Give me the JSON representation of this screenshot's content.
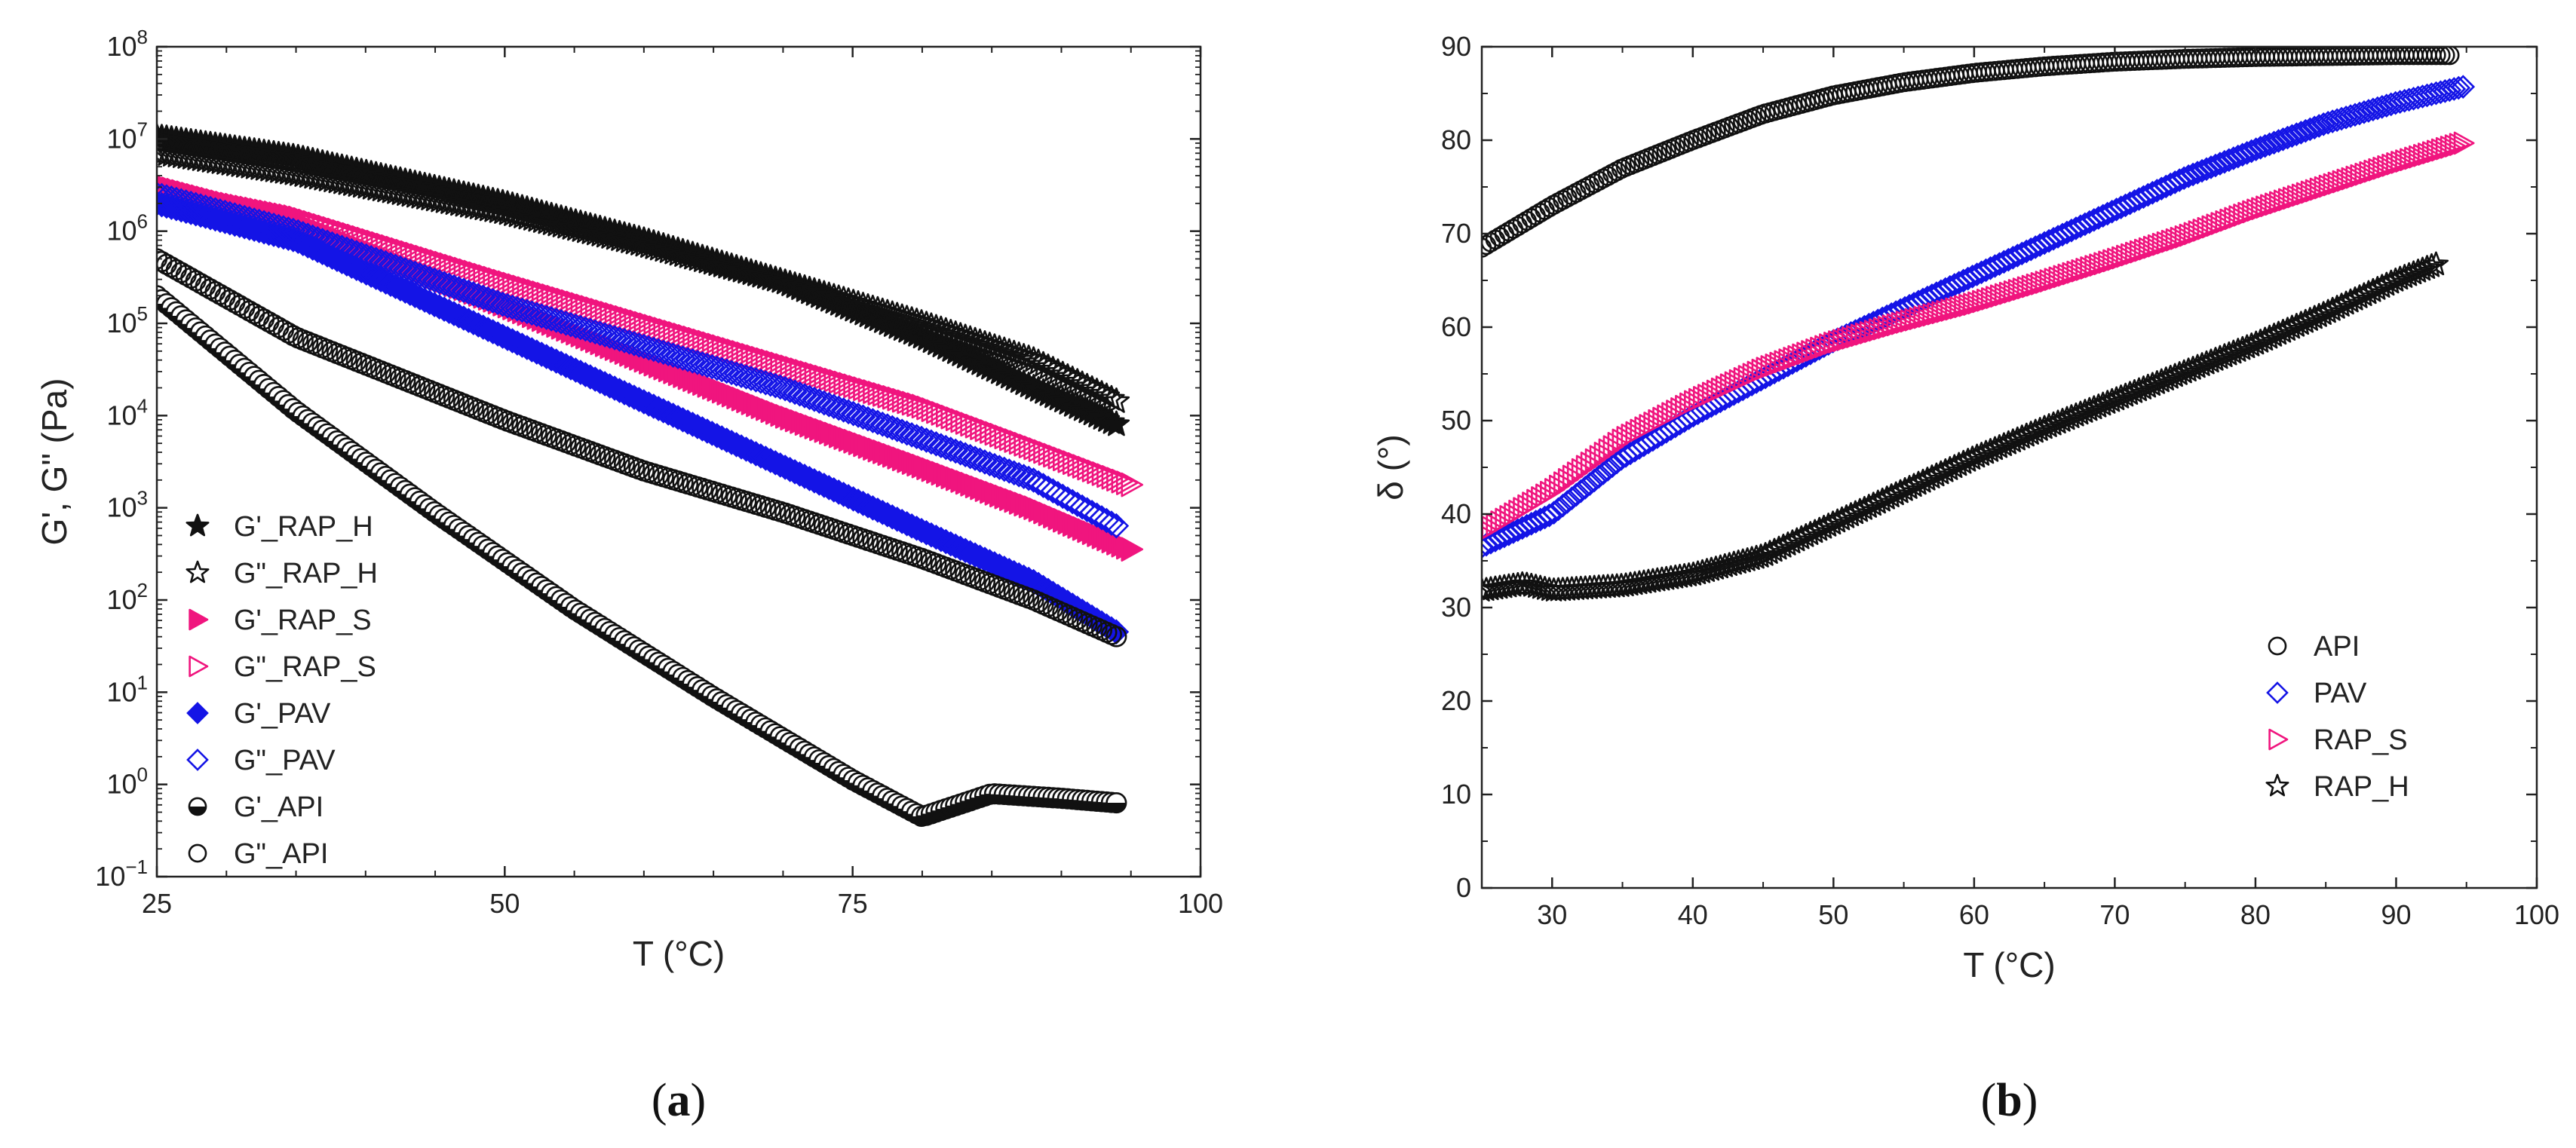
{
  "chart_data": [
    {
      "type": "scatter",
      "panel": "a",
      "caption": "(a)",
      "xlabel": "T (°C)",
      "ylabel": "G', G\" (Pa)",
      "xlim": [
        25,
        100
      ],
      "ylim_log10": [
        -1,
        8
      ],
      "yscale": "log",
      "xticks": [
        25,
        50,
        75,
        100
      ],
      "xtick_labels": [
        "25",
        "50",
        "75",
        "100"
      ],
      "ytick_labels": [
        {
          "base": "10",
          "exp": "−1"
        },
        {
          "base": "10",
          "exp": "0"
        },
        {
          "base": "10",
          "exp": "1"
        },
        {
          "base": "10",
          "exp": "2"
        },
        {
          "base": "10",
          "exp": "3"
        },
        {
          "base": "10",
          "exp": "4"
        },
        {
          "base": "10",
          "exp": "5"
        },
        {
          "base": "10",
          "exp": "6"
        },
        {
          "base": "10",
          "exp": "7"
        },
        {
          "base": "10",
          "exp": "8"
        }
      ],
      "legend_position": "lower-left",
      "series": [
        {
          "name": "G'_RAP_H",
          "color": "#111111",
          "marker": "star",
          "filled": true,
          "x": [
            25,
            35,
            50,
            60,
            70,
            80,
            88,
            94
          ],
          "log10_y": [
            7.02,
            6.8,
            6.3,
            5.9,
            5.45,
            4.85,
            4.3,
            3.9
          ]
        },
        {
          "name": "G\"_RAP_H",
          "color": "#111111",
          "marker": "star",
          "filled": false,
          "x": [
            25,
            35,
            50,
            60,
            70,
            80,
            88,
            94
          ],
          "log10_y": [
            6.85,
            6.62,
            6.2,
            5.85,
            5.45,
            5.0,
            4.6,
            4.15
          ]
        },
        {
          "name": "G'_RAP_S",
          "color": "#f0157e",
          "marker": "triangle-right",
          "filled": true,
          "x": [
            25,
            35,
            50,
            60,
            70,
            80,
            88,
            95
          ],
          "log10_y": [
            6.5,
            6.1,
            5.2,
            4.6,
            4.0,
            3.45,
            3.0,
            2.55
          ]
        },
        {
          "name": "G\"_RAP_S",
          "color": "#f0157e",
          "marker": "triangle-right",
          "filled": false,
          "x": [
            25,
            35,
            50,
            60,
            70,
            80,
            88,
            95
          ],
          "log10_y": [
            6.45,
            6.15,
            5.45,
            5.0,
            4.55,
            4.1,
            3.65,
            3.25
          ]
        },
        {
          "name": "G'_PAV",
          "color": "#1414e6",
          "marker": "diamond",
          "filled": true,
          "x": [
            25,
            35,
            50,
            60,
            70,
            80,
            88,
            94
          ],
          "log10_y": [
            6.3,
            5.9,
            4.85,
            4.15,
            3.45,
            2.75,
            2.2,
            1.65
          ]
        },
        {
          "name": "G\"_PAV",
          "color": "#1414e6",
          "marker": "diamond",
          "filled": false,
          "x": [
            25,
            35,
            50,
            60,
            70,
            80,
            88,
            94
          ],
          "log10_y": [
            6.4,
            6.0,
            5.2,
            4.75,
            4.3,
            3.75,
            3.3,
            2.8
          ]
        },
        {
          "name": "G'_API",
          "color": "#111111",
          "marker": "circle-half",
          "filled": true,
          "x": [
            25,
            35,
            45,
            55,
            65,
            75,
            80,
            85,
            90,
            94
          ],
          "log10_y": [
            5.3,
            4.05,
            2.95,
            1.9,
            0.95,
            0.05,
            -0.35,
            -0.1,
            -0.15,
            -0.2
          ]
        },
        {
          "name": "G\"_API",
          "color": "#111111",
          "marker": "circle",
          "filled": false,
          "x": [
            25,
            35,
            50,
            60,
            70,
            80,
            88,
            94
          ],
          "log10_y": [
            5.7,
            4.85,
            3.95,
            3.4,
            2.95,
            2.45,
            2.0,
            1.6
          ]
        }
      ]
    },
    {
      "type": "scatter",
      "panel": "b",
      "caption": "(b)",
      "xlabel": "T (°C)",
      "ylabel": "δ (°)",
      "xlim": [
        25,
        100
      ],
      "ylim": [
        0,
        90
      ],
      "xticks": [
        30,
        40,
        50,
        60,
        70,
        80,
        90,
        100
      ],
      "xtick_labels": [
        "30",
        "40",
        "50",
        "60",
        "70",
        "80",
        "90",
        "100"
      ],
      "yticks": [
        0,
        10,
        20,
        30,
        40,
        50,
        60,
        70,
        80,
        90
      ],
      "ytick_labels": [
        "0",
        "10",
        "20",
        "30",
        "40",
        "50",
        "60",
        "70",
        "80",
        "90"
      ],
      "legend_position": "lower-right",
      "series": [
        {
          "name": "API",
          "color": "#111111",
          "marker": "circle",
          "filled": false,
          "x": [
            25,
            30,
            35,
            40,
            45,
            50,
            55,
            60,
            65,
            70,
            75,
            80,
            85,
            90,
            94
          ],
          "y": [
            68.5,
            73,
            77,
            80,
            82.8,
            84.8,
            86.2,
            87.2,
            87.9,
            88.4,
            88.7,
            88.9,
            89.0,
            89.1,
            89.1
          ]
        },
        {
          "name": "PAV",
          "color": "#1414e6",
          "marker": "diamond",
          "filled": false,
          "x": [
            25,
            30,
            35,
            40,
            45,
            50,
            55,
            60,
            65,
            70,
            75,
            80,
            85,
            90,
            95
          ],
          "y": [
            36.5,
            40,
            46,
            50.5,
            54.5,
            58.5,
            62,
            65.5,
            69,
            72.5,
            76,
            79,
            81.8,
            84,
            85.8
          ]
        },
        {
          "name": "RAP_S",
          "color": "#f0157e",
          "marker": "triangle-right",
          "filled": false,
          "x": [
            25,
            30,
            35,
            40,
            45,
            50,
            55,
            60,
            65,
            70,
            75,
            80,
            85,
            90,
            95
          ],
          "y": [
            38,
            42.5,
            48,
            52,
            55.5,
            58.3,
            60.5,
            62.5,
            64.8,
            67.2,
            69.7,
            72.5,
            75,
            77.5,
            79.8
          ]
        },
        {
          "name": "RAP_H",
          "color": "#111111",
          "marker": "star",
          "filled": false,
          "x": [
            25,
            28,
            30,
            35,
            40,
            45,
            50,
            55,
            60,
            65,
            70,
            75,
            80,
            85,
            90,
            93
          ],
          "y": [
            31.8,
            32.5,
            31.8,
            32.3,
            33.5,
            35.5,
            39,
            42.5,
            46,
            49.2,
            52.2,
            55.2,
            58.2,
            61.5,
            65,
            66.8
          ]
        }
      ]
    }
  ]
}
